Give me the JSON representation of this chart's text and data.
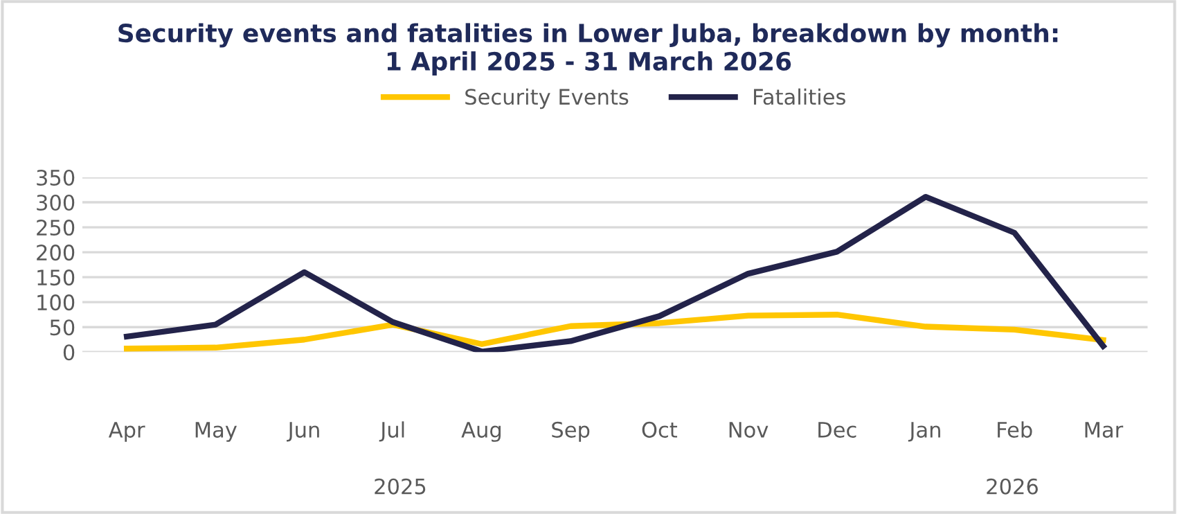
{
  "chart_data": {
    "type": "line",
    "title": "Security events and fatalities in Lower Juba, breakdown by month:\n1 April 2025 - 31 March 2026",
    "categories": [
      "Apr",
      "May",
      "Jun",
      "Jul",
      "Aug",
      "Sep",
      "Oct",
      "Nov",
      "Dec",
      "Jan",
      "Feb",
      "Mar"
    ],
    "series": [
      {
        "name": "Security Events",
        "color": "#ffc600",
        "values": [
          7,
          9,
          25,
          55,
          16,
          52,
          58,
          73,
          75,
          51,
          45,
          24
        ]
      },
      {
        "name": "Fatalities",
        "color": "#23234a",
        "values": [
          31,
          55,
          160,
          60,
          1,
          22,
          72,
          157,
          201,
          311,
          239,
          12
        ]
      }
    ],
    "ylim": [
      0,
      350
    ],
    "yticks": [
      0,
      50,
      100,
      150,
      200,
      250,
      300,
      350
    ],
    "grid": "y",
    "legend": "top",
    "marker": "none",
    "line_style": "solid",
    "annotations": [
      "2025",
      "2026"
    ]
  }
}
